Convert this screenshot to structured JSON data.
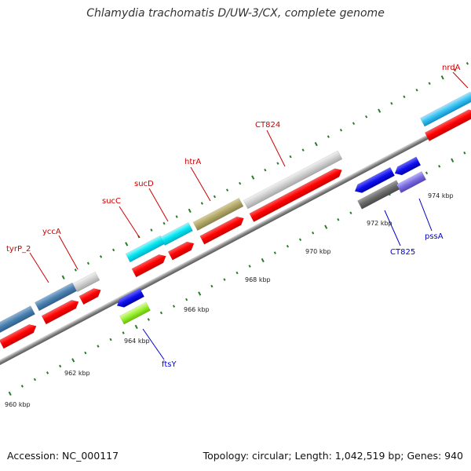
{
  "title": "Chlamydia trachomatis D/UW-3/CX, complete genome",
  "footer": {
    "accession": "Accession: NC_000117",
    "summary": "Topology: circular; Length: 1,042,519 bp; Genes: 940"
  },
  "colors": {
    "forward_label": "#cc0000",
    "reverse_label": "#0000cc",
    "cds": "#ff0000",
    "tick": "#2a7a2a",
    "backbone": "#888888"
  },
  "scale_labels": [
    "960 kbp",
    "962 kbp",
    "964 kbp",
    "966 kbp",
    "968 kbp",
    "970 kbp",
    "972 kbp",
    "974 kbp"
  ],
  "forward_genes": [
    "tyrP_2",
    "yccA",
    "sucC",
    "sucD",
    "htrA",
    "CT824",
    "nrdA"
  ],
  "reverse_genes": [
    "ftsY",
    "CT825",
    "pssA"
  ]
}
